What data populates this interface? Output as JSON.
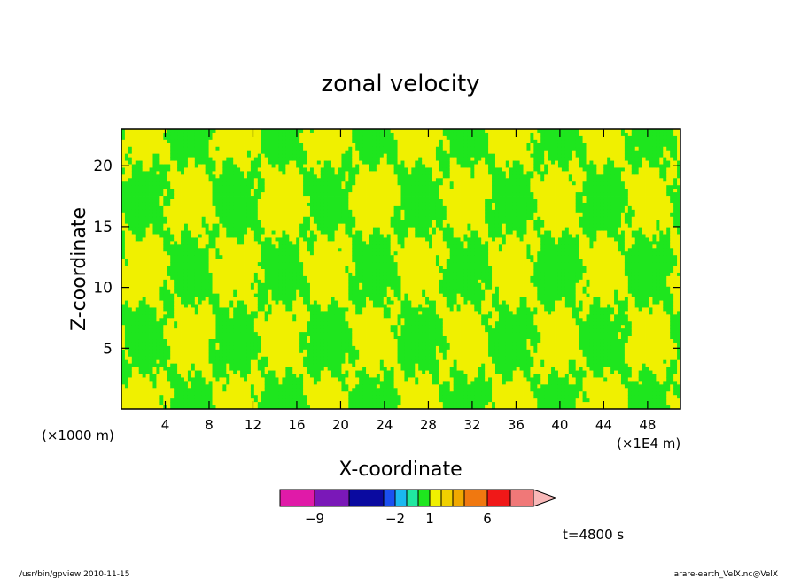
{
  "chart_data": {
    "type": "heatmap",
    "title": "zonal velocity",
    "xlabel": "X-coordinate",
    "ylabel": "Z-coordinate",
    "xlim": [
      0,
      51
    ],
    "ylim": [
      0,
      23
    ],
    "x_ticks": [
      {
        "value": 4,
        "label": "4"
      },
      {
        "value": 8,
        "label": "8"
      },
      {
        "value": 12,
        "label": "12"
      },
      {
        "value": 16,
        "label": "16"
      },
      {
        "value": 20,
        "label": "20"
      },
      {
        "value": 24,
        "label": "24"
      },
      {
        "value": 28,
        "label": "28"
      },
      {
        "value": 32,
        "label": "32"
      },
      {
        "value": 36,
        "label": "36"
      },
      {
        "value": 40,
        "label": "40"
      },
      {
        "value": 44,
        "label": "44"
      },
      {
        "value": 48,
        "label": "48"
      }
    ],
    "y_ticks": [
      {
        "value": 5,
        "label": "5"
      },
      {
        "value": 10,
        "label": "10"
      },
      {
        "value": 15,
        "label": "15"
      },
      {
        "value": 20,
        "label": "20"
      }
    ],
    "z_unit_label": "(×1000 m)",
    "x_unit_label": "(×1E4 m)",
    "time_label": "t=4800 s",
    "colorbar": {
      "labels": [
        {
          "value": -9,
          "label": "−9"
        },
        {
          "value": -2,
          "label": "−2"
        },
        {
          "value": 1,
          "label": "1"
        },
        {
          "value": 6,
          "label": "6"
        }
      ],
      "levels": [
        {
          "lo": -12,
          "hi": -9,
          "color": "#e01aa8"
        },
        {
          "lo": -9,
          "hi": -6,
          "color": "#7a18b8"
        },
        {
          "lo": -6,
          "hi": -3,
          "color": "#0a0aa0"
        },
        {
          "lo": -3,
          "hi": -2,
          "color": "#1a50f0"
        },
        {
          "lo": -2,
          "hi": -1,
          "color": "#1ab8f0"
        },
        {
          "lo": -1,
          "hi": 0,
          "color": "#20e8a0"
        },
        {
          "lo": 0,
          "hi": 1,
          "color": "#1ee61e"
        },
        {
          "lo": 1,
          "hi": 2,
          "color": "#f0f000"
        },
        {
          "lo": 2,
          "hi": 3,
          "color": "#f0d000"
        },
        {
          "lo": 3,
          "hi": 4,
          "color": "#f0a800"
        },
        {
          "lo": 4,
          "hi": 6,
          "color": "#f07810"
        },
        {
          "lo": 6,
          "hi": 8,
          "color": "#f01818"
        },
        {
          "lo": 8,
          "hi": 10,
          "color": "#f07878"
        },
        {
          "lo": 10,
          "hi": 12,
          "color": "#f8b8b8"
        }
      ],
      "field_colors": {
        "negative_small": "#1ee61e",
        "positive_small": "#f0f000"
      }
    }
  },
  "footer": {
    "left": "/usr/bin/gpview   2010-11-15",
    "right": "arare-earth_VelX.nc@VelX"
  }
}
